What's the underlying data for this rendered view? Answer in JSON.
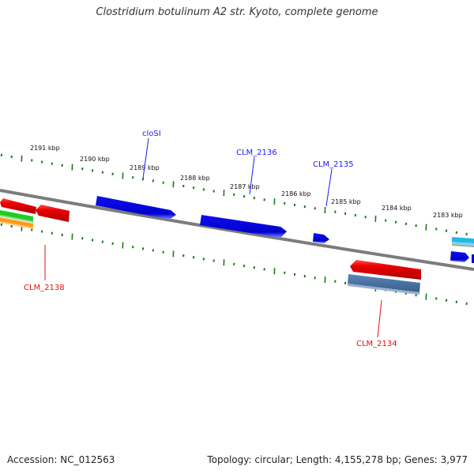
{
  "title": "Clostridium botulinum A2 str. Kyoto, complete genome",
  "footer": {
    "accession": "Accession: NC_012563",
    "summary": "Topology: circular; Length: 4,155,278 bp; Genes: 3,977"
  },
  "ruler_labels": [
    "2191 kbp",
    "2190 kbp",
    "2189 kbp",
    "2188 kbp",
    "2187 kbp",
    "2186 kbp",
    "2185 kbp",
    "2184 kbp",
    "2183 kbp"
  ],
  "gene_labels": [
    {
      "text": "cloSI",
      "strand": "forward"
    },
    {
      "text": "CLM_2136",
      "strand": "forward"
    },
    {
      "text": "CLM_2135",
      "strand": "forward"
    },
    {
      "text": "CLM_2138",
      "strand": "reverse"
    },
    {
      "text": "CLM_2134",
      "strand": "reverse"
    }
  ],
  "colors": {
    "forward": "#1a1aff",
    "reverse": "#e01010",
    "backbone": "#808080",
    "ticks": "#1a7a1a"
  }
}
